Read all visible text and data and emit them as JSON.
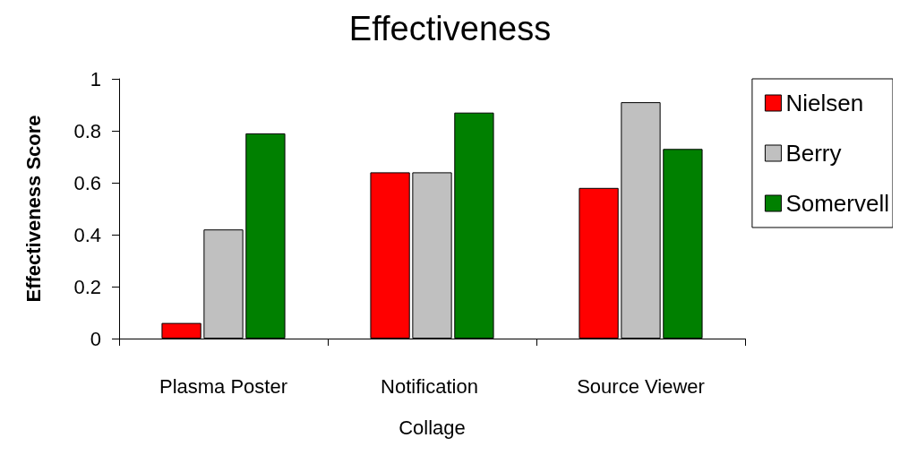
{
  "chart_data": {
    "type": "bar",
    "title": "Effectiveness",
    "ylabel": "Effectiveness Score",
    "categories": [
      "Plasma Poster",
      "Notification Collage",
      "Source Viewer"
    ],
    "series": [
      {
        "name": "Nielsen",
        "color": "#ff0000",
        "values": [
          0.06,
          0.64,
          0.58
        ]
      },
      {
        "name": "Berry",
        "color": "#c0c0c0",
        "values": [
          0.42,
          0.64,
          0.91
        ]
      },
      {
        "name": "Somervell",
        "color": "#008000",
        "values": [
          0.79,
          0.87,
          0.73
        ]
      }
    ],
    "ylim": [
      0,
      1
    ],
    "yticks": [
      0,
      0.2,
      0.4,
      0.6,
      0.8,
      1
    ],
    "grid": false,
    "legend": "right"
  }
}
